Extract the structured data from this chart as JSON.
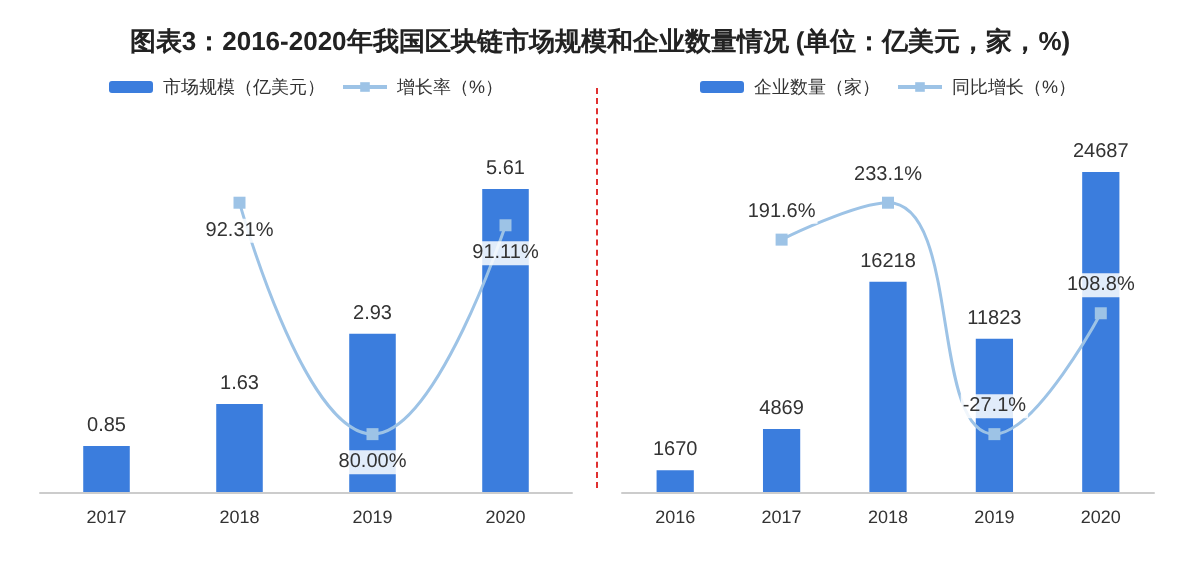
{
  "chart_data": [
    {
      "type": "bar",
      "title": "图表3：2016-2020年我国区块链市场规模和企业数量情况 (单位：亿美元，家，%)",
      "categories": [
        "2017",
        "2018",
        "2019",
        "2020"
      ],
      "series": [
        {
          "name": "市场规模（亿美元）",
          "color": "#3b7ddd",
          "values": [
            0.85,
            1.63,
            2.93,
            5.61
          ]
        },
        {
          "name": "增长率（%）",
          "type": "line",
          "axis": "y2",
          "color": "#9dc3e6",
          "values": [
            null,
            92.31,
            80.0,
            91.11
          ],
          "value_labels": [
            null,
            "92.31%",
            "80.00%",
            "91.11%"
          ]
        }
      ],
      "data_labels": true,
      "legend": "top",
      "grid": false,
      "marker": "square"
    },
    {
      "type": "bar",
      "categories": [
        "2016",
        "2017",
        "2018",
        "2019",
        "2020"
      ],
      "series": [
        {
          "name": "企业数量（家）",
          "color": "#3b7ddd",
          "values": [
            1670,
            4869,
            16218,
            11823,
            24687
          ]
        },
        {
          "name": "同比增长（%）",
          "type": "line",
          "axis": "y2",
          "color": "#9dc3e6",
          "values": [
            null,
            191.6,
            233.1,
            -27.1,
            108.8
          ],
          "value_labels": [
            null,
            "191.6%",
            "233.1%",
            "-27.1%",
            "108.8%"
          ]
        }
      ],
      "data_labels": true,
      "legend": "top",
      "grid": false,
      "marker": "square"
    }
  ]
}
